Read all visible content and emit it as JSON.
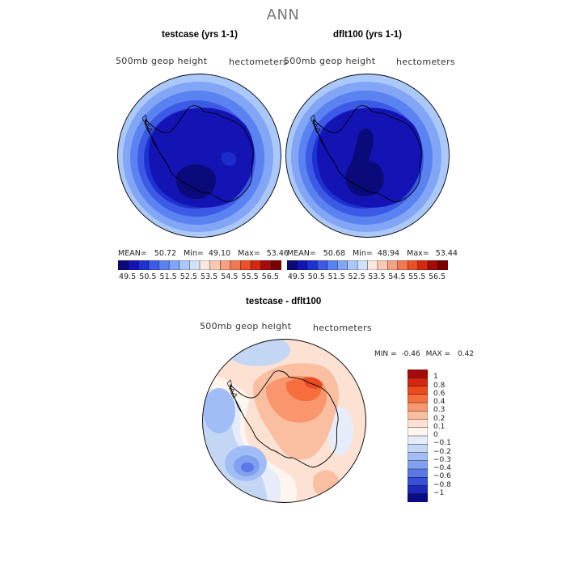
{
  "title": "ANN",
  "panels": [
    {
      "title": "testcase (yrs 1-1)",
      "left_label": "500mb geop height",
      "right_label": "hectometers",
      "stats": {
        "mean": "50.72",
        "min": "49.10",
        "max": "53.46"
      }
    },
    {
      "title": "dflt100 (yrs 1-1)",
      "left_label": "500mb geop height",
      "right_label": "hectometers",
      "stats": {
        "mean": "50.68",
        "min": "48.94",
        "max": "53.44"
      }
    }
  ],
  "stat_labels": {
    "mean": "MEAN=",
    "min": "Min=",
    "max": "Max="
  },
  "colorbar": {
    "colors": [
      "#0a0a7a",
      "#1414b4",
      "#1e32d2",
      "#3c5ae6",
      "#5a82f0",
      "#82a5f5",
      "#aac8fa",
      "#d2e1fa",
      "#fde8dc",
      "#fac8b4",
      "#f5a082",
      "#f07850",
      "#eb5028",
      "#d2280f",
      "#a50a0a",
      "#780000"
    ],
    "ticks": [
      "49.5",
      "50.5",
      "51.5",
      "52.5",
      "53.5",
      "54.5",
      "55.5",
      "56.5"
    ]
  },
  "diff": {
    "title": "testcase - dflt100",
    "left_label": "500mb geop height",
    "right_label": "hectometers",
    "min_label": "MIN =",
    "min": "-0.46",
    "max_label": "MAX =",
    "max": "0.42",
    "colors": [
      "#a50a0a",
      "#d2280f",
      "#eb4b1e",
      "#f56e3c",
      "#fa966e",
      "#fabea0",
      "#fde1d2",
      "#fdf5ee",
      "#e6ecfa",
      "#c3d7f5",
      "#a0bef5",
      "#82a0f0",
      "#5a78e6",
      "#3750d7",
      "#1e28b9",
      "#0a0a82"
    ],
    "labels": [
      "1",
      "0.8",
      "0.6",
      "0.4",
      "0.3",
      "0.2",
      "0.1",
      "0",
      "−0.1",
      "−0.2",
      "−0.3",
      "−0.4",
      "−0.6",
      "−0.8",
      "−1"
    ]
  }
}
